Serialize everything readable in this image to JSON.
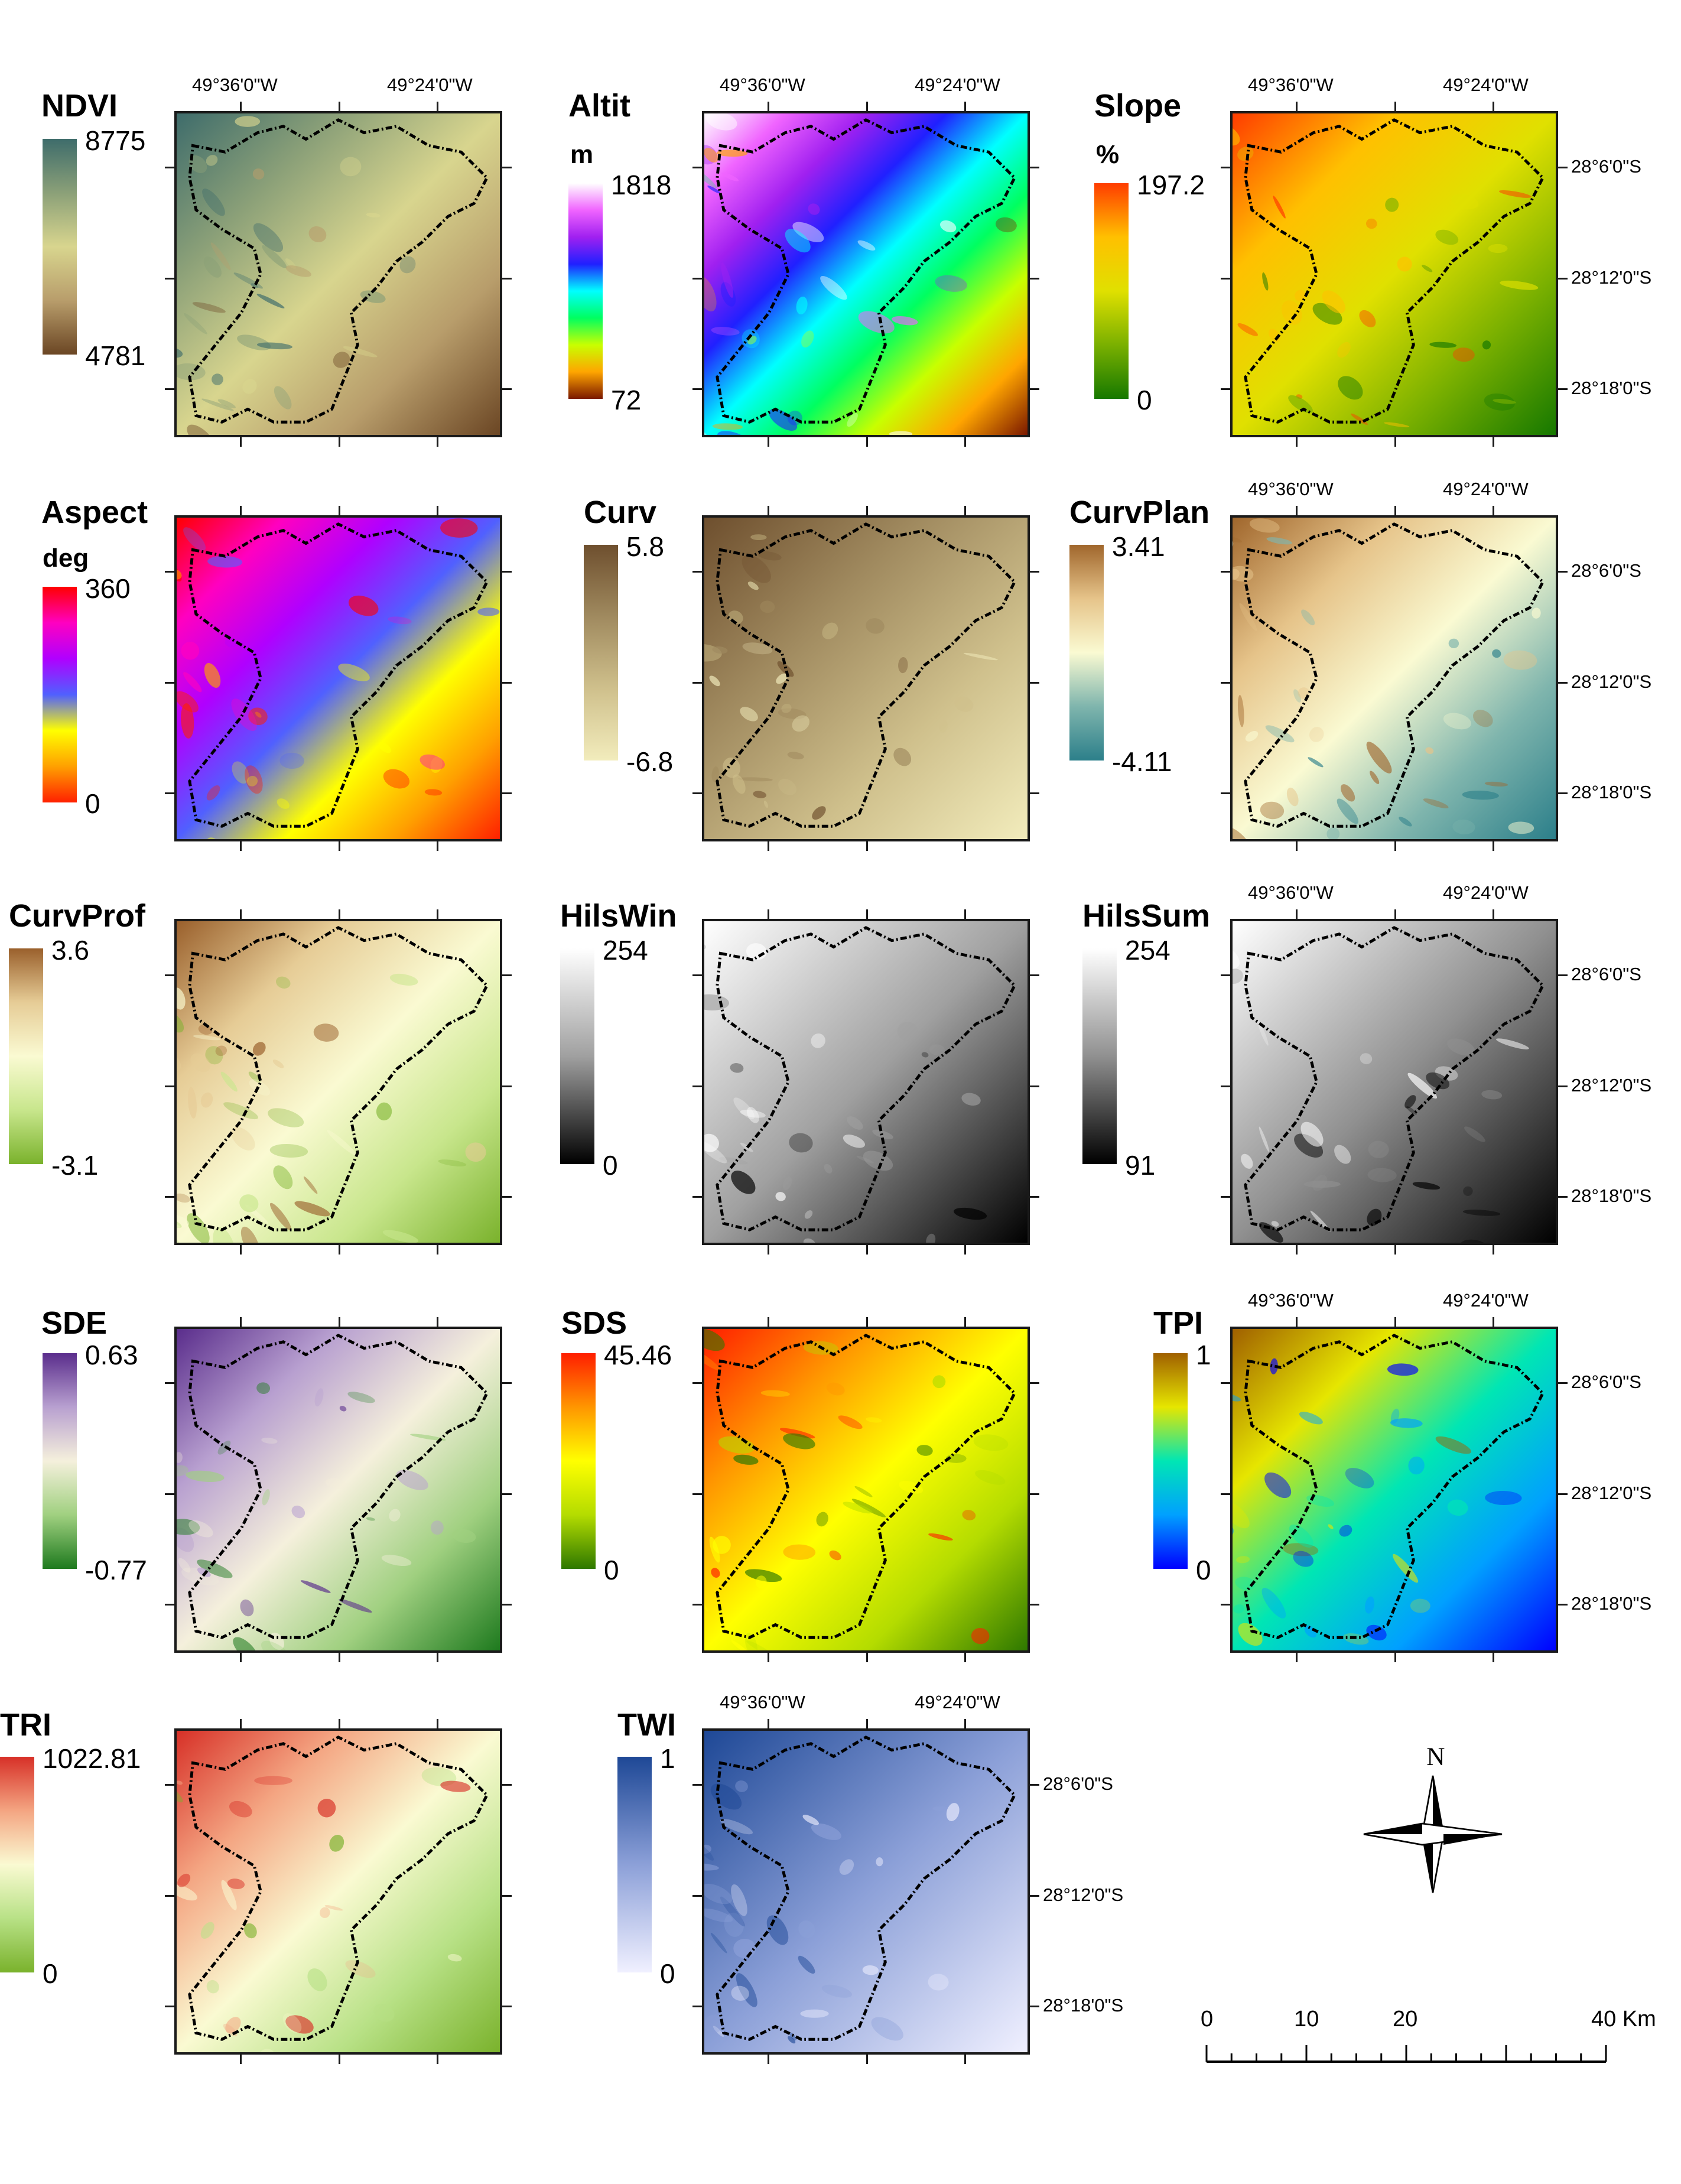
{
  "coords": {
    "lon_left": "49°36'0\"W",
    "lon_right": "49°24'0\"W",
    "lat_top": "28°6'0\"S",
    "lat_mid": "28°12'0\"S",
    "lat_bottom": "28°18'0\"S"
  },
  "panels": [
    {
      "id": "ndvi",
      "title": "NDVI",
      "unit": "",
      "max": "8775",
      "min": "4781",
      "colors": [
        "#3e6c6b",
        "#8ba078",
        "#d8d58e",
        "#b89d6b",
        "#6b4624"
      ]
    },
    {
      "id": "altit",
      "title": "Altit",
      "unit": "m",
      "max": "1818",
      "min": "72",
      "colors": [
        "#ffffff",
        "#f064ff",
        "#a020f0",
        "#2020ff",
        "#00ffff",
        "#00ff60",
        "#c8ff00",
        "#ffa500",
        "#7a1800"
      ]
    },
    {
      "id": "slope",
      "title": "Slope",
      "unit": "%",
      "max": "197.2",
      "min": "0",
      "colors": [
        "#ff3c00",
        "#ffc000",
        "#e0e000",
        "#7ab000",
        "#167800"
      ]
    },
    {
      "id": "aspect",
      "title": "Aspect",
      "unit": "deg",
      "max": "360",
      "min": "0",
      "colors": [
        "#ff0000",
        "#ff00c0",
        "#b000ff",
        "#5060ff",
        "#ffff00",
        "#ffa000",
        "#ff2000"
      ]
    },
    {
      "id": "curv",
      "title": "Curv",
      "unit": "",
      "max": "5.8",
      "min": "-6.8",
      "colors": [
        "#6e4f2e",
        "#a08a5f",
        "#cfc08c",
        "#f2ecbc"
      ]
    },
    {
      "id": "curvplan",
      "title": "CurvPlan",
      "unit": "",
      "max": "3.41",
      "min": "-4.11",
      "colors": [
        "#a0662c",
        "#e6c48a",
        "#fafad2",
        "#7fb5ad",
        "#2c7f8a"
      ]
    },
    {
      "id": "curvprof",
      "title": "CurvProf",
      "unit": "",
      "max": "3.6",
      "min": "-3.1",
      "colors": [
        "#9a602c",
        "#e6cc96",
        "#fafad2",
        "#c8e68c",
        "#7ab22c"
      ]
    },
    {
      "id": "hilswin",
      "title": "HilsWin",
      "unit": "",
      "max": "254",
      "min": "0",
      "colors": [
        "#ffffff",
        "#a0a0a0",
        "#000000"
      ]
    },
    {
      "id": "hilssum",
      "title": "HilsSum",
      "unit": "",
      "max": "254",
      "min": "91",
      "colors": [
        "#ffffff",
        "#909090",
        "#000000"
      ]
    },
    {
      "id": "sde",
      "title": "SDE",
      "unit": "",
      "max": "0.63",
      "min": "-0.77",
      "colors": [
        "#5a2d8c",
        "#b8a0d0",
        "#f5f0dc",
        "#a0d080",
        "#1e7a1e"
      ]
    },
    {
      "id": "sds",
      "title": "SDS",
      "unit": "",
      "max": "45.46",
      "min": "0",
      "colors": [
        "#ff1e00",
        "#ff9600",
        "#ffff00",
        "#b4dc00",
        "#2e7800"
      ]
    },
    {
      "id": "tpi",
      "title": "TPI",
      "unit": "",
      "max": "1",
      "min": "0",
      "colors": [
        "#a06000",
        "#e6e600",
        "#00e6b4",
        "#00a0ff",
        "#0000ff"
      ]
    },
    {
      "id": "tri",
      "title": "TRI",
      "unit": "",
      "max": "1022.81",
      "min": "0",
      "colors": [
        "#d73027",
        "#f4a582",
        "#fafad2",
        "#b8e186",
        "#7ab22c"
      ]
    },
    {
      "id": "twi",
      "title": "TWI",
      "unit": "",
      "max": "1",
      "min": "0",
      "colors": [
        "#1e4896",
        "#8ca0d8",
        "#f0f0ff"
      ]
    }
  ],
  "compass_label": "N",
  "scale": {
    "labels": [
      "0",
      "10",
      "20",
      "40 Km"
    ]
  }
}
